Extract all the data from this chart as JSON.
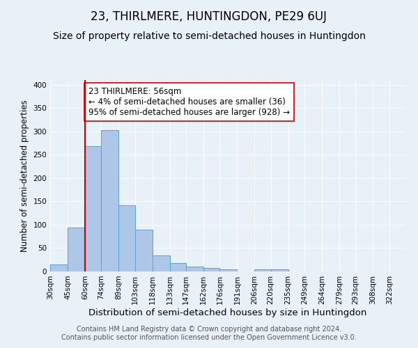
{
  "title": "23, THIRLMERE, HUNTINGDON, PE29 6UJ",
  "subtitle": "Size of property relative to semi-detached houses in Huntingdon",
  "xlabel": "Distribution of semi-detached houses by size in Huntingdon",
  "ylabel": "Number of semi-detached properties",
  "bin_labels": [
    "30sqm",
    "45sqm",
    "60sqm",
    "74sqm",
    "89sqm",
    "103sqm",
    "118sqm",
    "133sqm",
    "147sqm",
    "162sqm",
    "176sqm",
    "191sqm",
    "206sqm",
    "220sqm",
    "235sqm",
    "249sqm",
    "264sqm",
    "279sqm",
    "293sqm",
    "308sqm",
    "322sqm"
  ],
  "bin_edges": [
    30,
    45,
    60,
    74,
    89,
    103,
    118,
    133,
    147,
    162,
    176,
    191,
    206,
    220,
    235,
    249,
    264,
    279,
    293,
    308,
    322
  ],
  "bar_heights": [
    15,
    94,
    268,
    303,
    141,
    90,
    35,
    18,
    11,
    8,
    5,
    0,
    4,
    5,
    0,
    0,
    0,
    0,
    0,
    0
  ],
  "bar_color": "#aec6e8",
  "bar_edge_color": "#5a9fd4",
  "vline_x": 60,
  "vline_color": "#cc0000",
  "annotation_text": "23 THIRLMERE: 56sqm\n← 4% of semi-detached houses are smaller (36)\n95% of semi-detached houses are larger (928) →",
  "annotation_box_color": "#ffffff",
  "annotation_box_edge": "#cc0000",
  "ylim": [
    0,
    410
  ],
  "background_color": "#e8f0f8",
  "footer_text": "Contains HM Land Registry data © Crown copyright and database right 2024.\nContains public sector information licensed under the Open Government Licence v3.0.",
  "title_fontsize": 12,
  "subtitle_fontsize": 10,
  "xlabel_fontsize": 9.5,
  "ylabel_fontsize": 8.5,
  "tick_fontsize": 7.5,
  "annotation_fontsize": 8.5,
  "footer_fontsize": 7
}
